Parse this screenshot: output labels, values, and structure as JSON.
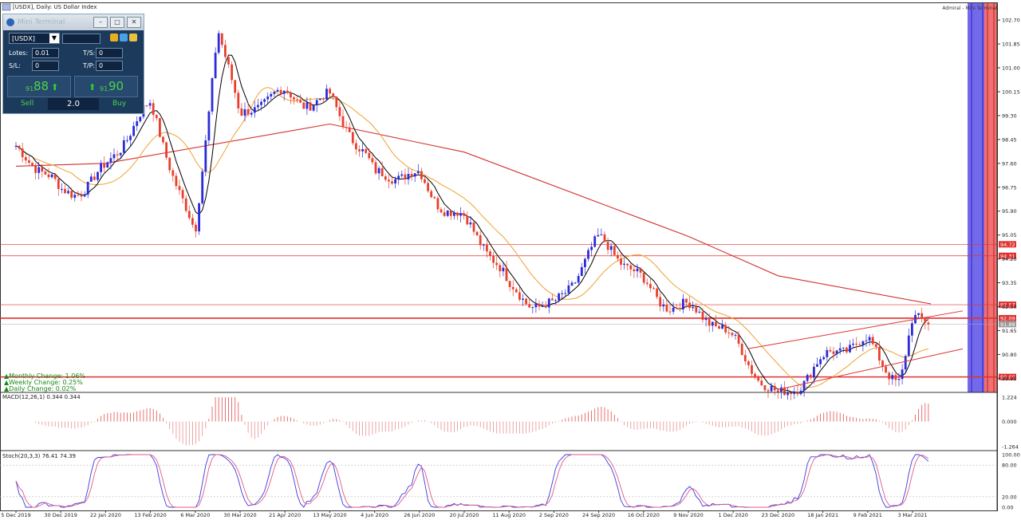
{
  "window": {
    "title": "[USDX], Daily:  US Dollar Index",
    "top_right": "Admiral - Mini Terminal"
  },
  "mini_terminal": {
    "title": "Mini Terminal",
    "symbol": "[USDX]",
    "lots_label": "Lotes:",
    "lots_value": "0.01",
    "sl_label": "S/L:",
    "sl_value": "0",
    "ts_label": "T/S:",
    "ts_value": "0",
    "tp_label": "T/P:",
    "tp_value": "0",
    "sell_small": "91.",
    "sell_big": "88",
    "buy_small": "91.",
    "buy_big": "90",
    "sell_label": "Sell",
    "buy_label": "Buy",
    "lot_size": "2.0"
  },
  "changes": {
    "monthly": "Monthly Change: 1.06%",
    "weekly": "Weekly Change: 0.25%",
    "daily": "Daily Change: 0.02%"
  },
  "indicators": {
    "macd_label": "MACD(12,26,1) 0.344 0.344",
    "stoch_label": "Stoch(20,3,3) 76.41 74.39"
  },
  "colors": {
    "bull": "#2b2bd9",
    "bear": "#e8402c",
    "ma200": "#d43030",
    "ma50": "#f0a030",
    "ma20": "#000000",
    "level": "#e03030",
    "channel": "#e03030"
  },
  "chart_data": {
    "type": "candlestick",
    "title": "[USDX], Daily:  US Dollar Index",
    "ylim": [
      89.45,
      103.3
    ],
    "y_ticks": [
      "102.70",
      "101.85",
      "101.00",
      "100.15",
      "99.30",
      "98.45",
      "97.60",
      "96.75",
      "95.90",
      "95.05",
      "94.20",
      "93.35",
      "92.50",
      "91.65",
      "90.80",
      "89.95"
    ],
    "x_ticks": [
      "5 Dec 2019",
      "30 Dec 2019",
      "22 Jan 2020",
      "13 Feb 2020",
      "6 Mar 2020",
      "30 Mar 2020",
      "21 Apr 2020",
      "13 May 2020",
      "4 Jun 2020",
      "26 Jun 2020",
      "20 Jul 2020",
      "11 Aug 2020",
      "2 Sep 2020",
      "24 Sep 2020",
      "16 Oct 2020",
      "9 Nov 2020",
      "1 Dec 2020",
      "23 Dec 2020",
      "18 Jan 2021",
      "9 Feb 2021",
      "3 Mar 2021"
    ],
    "price_keyframes": [
      [
        "5 Dec 2019",
        97.8
      ],
      [
        "30 Dec 2019",
        96.6
      ],
      [
        "22 Jan 2020",
        97.6
      ],
      [
        "13 Feb 2020",
        99.3
      ],
      [
        "6 Mar 2020",
        95.3
      ],
      [
        "18 Mar 2020",
        102.8
      ],
      [
        "30 Mar 2020",
        99.0
      ],
      [
        "21 Apr 2020",
        100.0
      ],
      [
        "13 May 2020",
        100.2
      ],
      [
        "4 Jun 2020",
        96.8
      ],
      [
        "26 Jun 2020",
        97.4
      ],
      [
        "20 Jul 2020",
        95.5
      ],
      [
        "11 Aug 2020",
        93.0
      ],
      [
        "2 Sep 2020",
        92.8
      ],
      [
        "24 Sep 2020",
        94.5
      ],
      [
        "16 Oct 2020",
        93.5
      ],
      [
        "9 Nov 2020",
        92.5
      ],
      [
        "1 Dec 2020",
        91.0
      ],
      [
        "23 Dec 2020",
        89.6
      ],
      [
        "18 Jan 2021",
        90.3
      ],
      [
        "9 Feb 2021",
        91.3
      ],
      [
        "25 Feb 2021",
        90.2
      ],
      [
        "3 Mar 2021",
        92.1
      ],
      [
        "12 Mar 2021",
        91.88
      ]
    ],
    "ma200": [
      [
        "5 Dec 2019",
        97.5
      ],
      [
        "22 Jan 2020",
        97.6
      ],
      [
        "13 May 2020",
        99.0
      ],
      [
        "20 Jul 2020",
        98.0
      ],
      [
        "16 Oct 2020",
        95.6
      ],
      [
        "9 Nov 2020",
        95.0
      ],
      [
        "23 Dec 2020",
        93.6
      ],
      [
        "12 Mar 2021",
        92.6
      ]
    ],
    "horizontal_levels": [
      {
        "value": 94.72,
        "label": "94.72",
        "bold": false
      },
      {
        "value": 94.31,
        "label": "94.31",
        "bold": false
      },
      {
        "value": 92.57,
        "label": "92.57",
        "bold": false
      },
      {
        "value": 92.09,
        "label": "92.09",
        "bold": true
      },
      {
        "value": 90.0,
        "label": "90.00",
        "bold": true
      }
    ],
    "current_price": {
      "value": 91.88,
      "label": "91.88"
    },
    "channel": {
      "upper": [
        [
          "8 Dec 2020",
          91.0
        ],
        [
          "12 Mar 2021",
          92.3
        ]
      ],
      "lower": [
        [
          "23 Dec 2020",
          89.55
        ],
        [
          "12 Mar 2021",
          90.75
        ]
      ]
    },
    "macd": {
      "ylim": [
        -1.264,
        1.224
      ],
      "ticks": [
        "1.224",
        "0.000",
        "-1.264"
      ],
      "last": 0.344
    },
    "stoch": {
      "ylim": [
        0,
        100
      ],
      "ticks": [
        "100.00",
        "80.00",
        "20.00",
        "0.00"
      ],
      "k_last": 76.41,
      "d_last": 74.39
    }
  }
}
